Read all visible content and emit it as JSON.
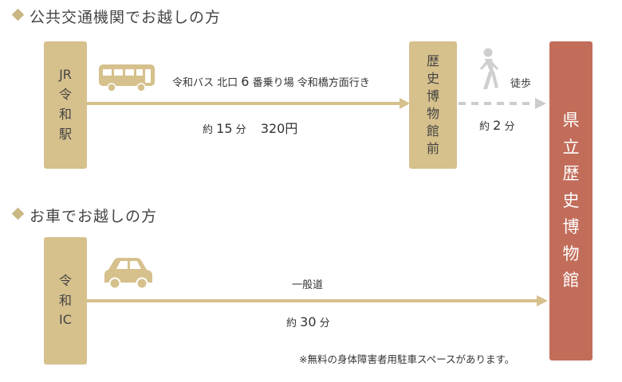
{
  "section_public": {
    "title": "公共交通機関でお越しの方"
  },
  "section_car": {
    "title": "お車でお越しの方"
  },
  "start_jr": {
    "lines": [
      "JR",
      "令",
      "和",
      "駅"
    ]
  },
  "bus_stop": {
    "lines": [
      "歴",
      "史",
      "博",
      "物",
      "館",
      "前"
    ]
  },
  "start_ic": {
    "lines": [
      "令",
      "和",
      "IC"
    ]
  },
  "destination": {
    "lines": [
      "県",
      "立",
      "歴",
      "史",
      "博",
      "物",
      "館"
    ]
  },
  "bus_route": {
    "pre": "令和バス 北口",
    "num": "6",
    "post": "番乗り場 令和橋方面行き",
    "time_prefix": "約",
    "time_num": "15",
    "time_unit": "分",
    "fare": "320円"
  },
  "walk_route": {
    "mode": "徒歩",
    "time_prefix": "約",
    "time_num": "2",
    "time_unit": "分"
  },
  "car_route": {
    "road": "一般道",
    "time_prefix": "約",
    "time_num": "30",
    "time_unit": "分"
  },
  "note": "※無料の身体障害者用駐車スペースがあります。",
  "icons": [
    "bus-icon",
    "walking-person-icon",
    "car-icon"
  ],
  "colors": {
    "box": "#d6c08c",
    "museum": "#c26d5a",
    "walk_line": "#cccccc"
  }
}
